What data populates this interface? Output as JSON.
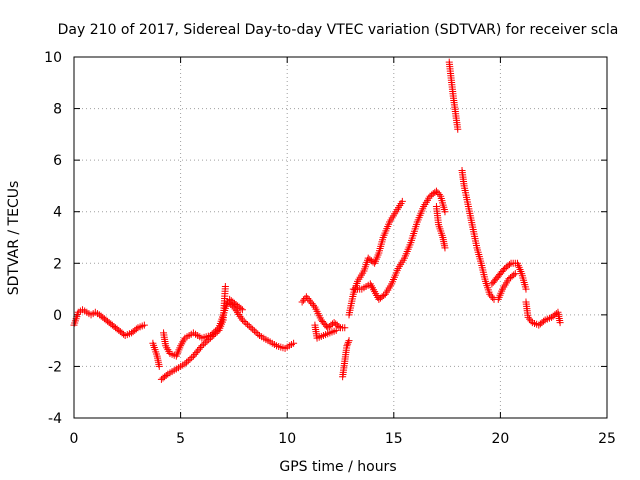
{
  "chart_data": {
    "type": "scatter",
    "title": "Day 210 of 2017, Sidereal Day-to-day VTEC variation (SDTVAR) for receiver scla",
    "xlabel": "GPS time / hours",
    "ylabel": "SDTVAR / TECUs",
    "xlim": [
      0,
      25
    ],
    "ylim": [
      -4,
      10
    ],
    "xticks": [
      0,
      5,
      10,
      15,
      20,
      25
    ],
    "yticks": [
      -4,
      -2,
      0,
      2,
      4,
      6,
      8,
      10
    ],
    "xtick_labels": [
      "0",
      "5",
      "10",
      "15",
      "20",
      "25"
    ],
    "ytick_labels": [
      "-4",
      "-2",
      "0",
      "2",
      "4",
      "6",
      "8",
      "10"
    ],
    "grid": true,
    "marker": "+",
    "series": [
      {
        "name": "SDTVAR",
        "color": "#ff0000",
        "segments": [
          [
            [
              0.0,
              -0.4
            ],
            [
              0.2,
              0.1
            ],
            [
              0.4,
              0.2
            ],
            [
              0.6,
              0.1
            ],
            [
              0.8,
              0.0
            ],
            [
              1.0,
              0.1
            ],
            [
              1.2,
              0.0
            ],
            [
              1.5,
              -0.2
            ],
            [
              1.8,
              -0.4
            ],
            [
              2.1,
              -0.6
            ],
            [
              2.4,
              -0.8
            ],
            [
              2.7,
              -0.7
            ],
            [
              3.0,
              -0.5
            ],
            [
              3.3,
              -0.4
            ]
          ],
          [
            [
              3.7,
              -1.1
            ],
            [
              3.9,
              -1.6
            ],
            [
              4.0,
              -2.0
            ]
          ],
          [
            [
              4.2,
              -0.7
            ],
            [
              4.3,
              -1.2
            ],
            [
              4.5,
              -1.5
            ],
            [
              4.8,
              -1.6
            ],
            [
              5.0,
              -1.2
            ],
            [
              5.2,
              -0.9
            ],
            [
              5.6,
              -0.7
            ],
            [
              6.0,
              -0.9
            ],
            [
              6.4,
              -0.8
            ],
            [
              6.8,
              -0.5
            ],
            [
              7.0,
              0.0
            ],
            [
              7.2,
              0.5
            ],
            [
              7.5,
              0.3
            ],
            [
              7.9,
              -0.2
            ],
            [
              8.3,
              -0.5
            ],
            [
              8.7,
              -0.8
            ],
            [
              9.1,
              -1.0
            ],
            [
              9.5,
              -1.2
            ],
            [
              9.9,
              -1.3
            ],
            [
              10.3,
              -1.1
            ]
          ],
          [
            [
              4.1,
              -2.5
            ],
            [
              4.4,
              -2.3
            ],
            [
              4.8,
              -2.1
            ],
            [
              5.2,
              -1.9
            ],
            [
              5.6,
              -1.6
            ],
            [
              6.0,
              -1.2
            ],
            [
              6.4,
              -0.9
            ],
            [
              6.8,
              -0.6
            ],
            [
              7.0,
              -0.2
            ],
            [
              7.1,
              1.1
            ]
          ],
          [
            [
              7.3,
              0.6
            ],
            [
              7.6,
              0.4
            ],
            [
              7.9,
              0.2
            ]
          ],
          [
            [
              10.7,
              0.5
            ],
            [
              10.9,
              0.7
            ],
            [
              11.1,
              0.5
            ],
            [
              11.3,
              0.3
            ],
            [
              11.6,
              -0.2
            ],
            [
              11.9,
              -0.5
            ],
            [
              12.2,
              -0.3
            ],
            [
              12.5,
              -0.5
            ],
            [
              12.7,
              -0.5
            ]
          ],
          [
            [
              11.3,
              -0.4
            ],
            [
              11.4,
              -0.9
            ],
            [
              11.7,
              -0.8
            ],
            [
              12.0,
              -0.7
            ],
            [
              12.3,
              -0.6
            ]
          ],
          [
            [
              12.6,
              -2.4
            ],
            [
              12.7,
              -1.8
            ],
            [
              12.8,
              -1.2
            ],
            [
              12.9,
              -1.0
            ]
          ],
          [
            [
              12.9,
              0.0
            ],
            [
              13.1,
              0.8
            ],
            [
              13.3,
              1.3
            ],
            [
              13.6,
              1.7
            ],
            [
              13.8,
              2.2
            ],
            [
              14.1,
              2.0
            ],
            [
              14.3,
              2.4
            ],
            [
              14.5,
              3.0
            ],
            [
              14.8,
              3.6
            ],
            [
              15.1,
              4.0
            ],
            [
              15.4,
              4.4
            ]
          ],
          [
            [
              13.1,
              1.0
            ],
            [
              13.5,
              1.0
            ],
            [
              13.9,
              1.2
            ],
            [
              14.1,
              0.9
            ],
            [
              14.3,
              0.6
            ],
            [
              14.6,
              0.8
            ],
            [
              14.9,
              1.2
            ],
            [
              15.2,
              1.8
            ],
            [
              15.5,
              2.2
            ],
            [
              15.8,
              2.8
            ],
            [
              16.1,
              3.6
            ],
            [
              16.4,
              4.2
            ],
            [
              16.7,
              4.6
            ],
            [
              17.0,
              4.8
            ],
            [
              17.2,
              4.6
            ],
            [
              17.4,
              4.0
            ]
          ],
          [
            [
              17.0,
              4.2
            ],
            [
              17.1,
              3.5
            ],
            [
              17.3,
              3.0
            ],
            [
              17.4,
              2.6
            ]
          ],
          [
            [
              17.6,
              9.8
            ],
            [
              17.7,
              9.1
            ],
            [
              17.8,
              8.4
            ],
            [
              17.9,
              7.8
            ],
            [
              18.0,
              7.2
            ]
          ],
          [
            [
              18.2,
              5.6
            ],
            [
              18.3,
              5.0
            ],
            [
              18.5,
              4.2
            ],
            [
              18.7,
              3.4
            ],
            [
              18.9,
              2.6
            ],
            [
              19.1,
              2.0
            ],
            [
              19.3,
              1.3
            ],
            [
              19.5,
              0.8
            ],
            [
              19.7,
              0.6
            ]
          ],
          [
            [
              19.6,
              1.2
            ],
            [
              19.9,
              1.5
            ],
            [
              20.2,
              1.8
            ],
            [
              20.5,
              2.0
            ],
            [
              20.8,
              2.0
            ],
            [
              21.0,
              1.6
            ],
            [
              21.2,
              1.0
            ]
          ],
          [
            [
              19.9,
              0.6
            ],
            [
              20.1,
              1.0
            ],
            [
              20.4,
              1.4
            ],
            [
              20.7,
              1.6
            ]
          ],
          [
            [
              21.2,
              0.5
            ],
            [
              21.3,
              -0.1
            ],
            [
              21.5,
              -0.3
            ],
            [
              21.8,
              -0.4
            ],
            [
              22.1,
              -0.2
            ],
            [
              22.4,
              -0.1
            ],
            [
              22.7,
              0.1
            ],
            [
              22.8,
              -0.3
            ]
          ]
        ]
      }
    ]
  }
}
